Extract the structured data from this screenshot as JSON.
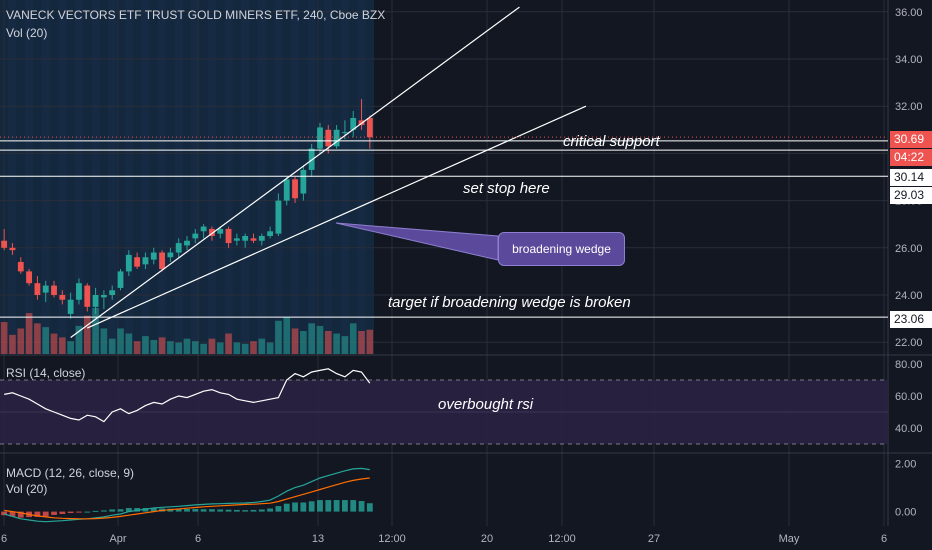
{
  "header": {
    "title": "VANECK VECTORS ETF TRUST GOLD MINERS ETF, 240, Cboe BZX",
    "vol_label": "Vol (20)"
  },
  "rsi_pane": {
    "label": "RSI (14, close)"
  },
  "macd_pane": {
    "label": "MACD (12, 26, close, 9)",
    "vol_label": "Vol (20)"
  },
  "annotations": {
    "critical_support": "critical support",
    "set_stop": "set stop here",
    "wedge_callout": "broadening wedge",
    "target": "target if broadening wedge is broken",
    "overbought": "overbought rsi"
  },
  "price_tags": {
    "last": "30.69",
    "countdown": "04:22",
    "stop": "30.14",
    "level": "29.03",
    "target": "23.06"
  },
  "colors": {
    "up": "#26a69a",
    "down": "#ef5350",
    "background": "#131722",
    "session_band": "#1c3a5e",
    "callout": "#5b4a9b",
    "rsi_band": "#2a2242",
    "macd_line": "#26a69a",
    "signal_line": "#ff6d00"
  },
  "chart_data": [
    {
      "type": "candlestick",
      "title": "VANECK VECTORS ETF TRUST GOLD MINERS ETF, 240, Cboe BZX",
      "x_tick_labels": [
        "6",
        "Apr",
        "6",
        "13",
        "12:00",
        "20",
        "12:00",
        "27",
        "May",
        "6"
      ],
      "y_tick_labels": [
        "36.00",
        "34.00",
        "32.00",
        "30.00",
        "28.00",
        "26.00",
        "24.00",
        "22.00"
      ],
      "ylim": [
        21.5,
        36.5
      ],
      "grid": true,
      "candles": [
        {
          "o": 26.3,
          "h": 26.8,
          "l": 25.9,
          "c": 26.0
        },
        {
          "o": 26.0,
          "h": 26.2,
          "l": 25.7,
          "c": 25.9
        },
        {
          "o": 25.4,
          "h": 25.6,
          "l": 24.9,
          "c": 25.0
        },
        {
          "o": 25.0,
          "h": 25.1,
          "l": 24.4,
          "c": 24.5
        },
        {
          "o": 24.5,
          "h": 24.8,
          "l": 23.8,
          "c": 24.0
        },
        {
          "o": 24.1,
          "h": 24.6,
          "l": 23.7,
          "c": 24.4
        },
        {
          "o": 24.4,
          "h": 24.6,
          "l": 23.9,
          "c": 24.0
        },
        {
          "o": 24.0,
          "h": 24.2,
          "l": 23.6,
          "c": 23.8
        },
        {
          "o": 23.2,
          "h": 24.1,
          "l": 23.0,
          "c": 23.8
        },
        {
          "o": 23.8,
          "h": 24.7,
          "l": 23.6,
          "c": 24.5
        },
        {
          "o": 24.4,
          "h": 24.5,
          "l": 23.3,
          "c": 23.5
        },
        {
          "o": 23.5,
          "h": 24.3,
          "l": 23.2,
          "c": 24.0
        },
        {
          "o": 23.9,
          "h": 24.2,
          "l": 23.4,
          "c": 24.0
        },
        {
          "o": 24.0,
          "h": 24.4,
          "l": 23.8,
          "c": 24.2
        },
        {
          "o": 24.3,
          "h": 25.1,
          "l": 24.2,
          "c": 25.0
        },
        {
          "o": 25.0,
          "h": 25.9,
          "l": 24.8,
          "c": 25.7
        },
        {
          "o": 25.6,
          "h": 25.8,
          "l": 25.1,
          "c": 25.2
        },
        {
          "o": 25.3,
          "h": 25.8,
          "l": 25.1,
          "c": 25.6
        },
        {
          "o": 25.5,
          "h": 26.0,
          "l": 25.3,
          "c": 25.8
        },
        {
          "o": 25.8,
          "h": 25.9,
          "l": 25.0,
          "c": 25.1
        },
        {
          "o": 25.6,
          "h": 26.0,
          "l": 25.4,
          "c": 25.8
        },
        {
          "o": 25.8,
          "h": 26.4,
          "l": 25.6,
          "c": 26.2
        },
        {
          "o": 26.1,
          "h": 26.5,
          "l": 25.9,
          "c": 26.3
        },
        {
          "o": 26.4,
          "h": 26.8,
          "l": 26.2,
          "c": 26.6
        },
        {
          "o": 26.7,
          "h": 27.0,
          "l": 26.4,
          "c": 26.9
        },
        {
          "o": 26.8,
          "h": 26.9,
          "l": 26.3,
          "c": 26.5
        },
        {
          "o": 26.6,
          "h": 26.9,
          "l": 26.4,
          "c": 26.8
        },
        {
          "o": 26.8,
          "h": 26.9,
          "l": 26.0,
          "c": 26.2
        },
        {
          "o": 26.3,
          "h": 26.6,
          "l": 26.1,
          "c": 26.4
        },
        {
          "o": 26.3,
          "h": 26.6,
          "l": 26.0,
          "c": 26.5
        },
        {
          "o": 26.4,
          "h": 26.6,
          "l": 26.2,
          "c": 26.3
        },
        {
          "o": 26.3,
          "h": 26.6,
          "l": 26.1,
          "c": 26.5
        },
        {
          "o": 26.5,
          "h": 26.9,
          "l": 26.4,
          "c": 26.7
        },
        {
          "o": 26.6,
          "h": 28.3,
          "l": 26.5,
          "c": 28.0
        },
        {
          "o": 28.0,
          "h": 29.0,
          "l": 27.8,
          "c": 28.9
        },
        {
          "o": 28.9,
          "h": 29.0,
          "l": 27.9,
          "c": 28.1
        },
        {
          "o": 28.3,
          "h": 29.5,
          "l": 28.0,
          "c": 29.3
        },
        {
          "o": 29.3,
          "h": 30.4,
          "l": 29.0,
          "c": 30.2
        },
        {
          "o": 30.2,
          "h": 31.3,
          "l": 30.0,
          "c": 31.1
        },
        {
          "o": 31.0,
          "h": 31.2,
          "l": 30.0,
          "c": 30.3
        },
        {
          "o": 30.3,
          "h": 31.2,
          "l": 30.2,
          "c": 31.0
        },
        {
          "o": 30.9,
          "h": 31.4,
          "l": 30.6,
          "c": 30.9
        },
        {
          "o": 31.0,
          "h": 31.8,
          "l": 30.7,
          "c": 31.5
        },
        {
          "o": 31.4,
          "h": 32.3,
          "l": 31.0,
          "c": 31.2
        },
        {
          "o": 31.5,
          "h": 31.6,
          "l": 30.2,
          "c": 30.69
        }
      ],
      "volume": [
        2.5,
        1.5,
        2.0,
        3.2,
        2.4,
        2.1,
        1.6,
        1.3,
        1.0,
        2.2,
        3.0,
        3.6,
        2.0,
        1.2,
        2.0,
        1.6,
        1.0,
        1.4,
        1.1,
        1.3,
        1.0,
        0.9,
        1.2,
        1.0,
        0.8,
        1.2,
        0.9,
        1.6,
        0.9,
        0.8,
        1.0,
        1.2,
        0.9,
        2.6,
        2.9,
        2.0,
        1.8,
        2.4,
        2.2,
        1.8,
        1.6,
        1.4,
        2.4,
        1.8,
        1.9
      ],
      "drawings": [
        {
          "kind": "trendline",
          "name": "wedge-upper",
          "from": {
            "bar": 8,
            "price": 22.2
          },
          "to": {
            "bar": 62,
            "price": 36.2
          }
        },
        {
          "kind": "trendline",
          "name": "wedge-lower",
          "from": {
            "bar": 10,
            "price": 22.6
          },
          "to": {
            "bar": 70,
            "price": 32.0
          }
        },
        {
          "kind": "horizontal",
          "name": "critical-support",
          "price": 30.69
        },
        {
          "kind": "horizontal",
          "name": "stop",
          "price": 30.14
        },
        {
          "kind": "horizontal",
          "name": "level",
          "price": 29.03
        },
        {
          "kind": "horizontal",
          "name": "target",
          "price": 23.06
        }
      ]
    },
    {
      "type": "line",
      "title": "RSI (14, close)",
      "ylim": [
        25,
        85
      ],
      "y_tick_labels": [
        "80.00",
        "60.00",
        "40.00"
      ],
      "bands": [
        30,
        70
      ],
      "values": [
        61,
        62,
        60,
        58,
        55,
        52,
        50,
        48,
        46,
        45,
        48,
        47,
        44,
        50,
        52,
        49,
        51,
        54,
        56,
        55,
        58,
        60,
        59,
        61,
        63,
        64,
        62,
        61,
        58,
        57,
        56,
        57,
        58,
        59,
        70,
        74,
        72,
        75,
        76,
        77,
        74,
        72,
        76,
        75,
        68
      ]
    },
    {
      "type": "line",
      "title": "MACD (12, 26, close, 9)",
      "ylim": [
        -0.6,
        2.4
      ],
      "y_tick_labels": [
        "2.00",
        "0.00"
      ],
      "series": [
        {
          "values": [
            -0.1,
            -0.2,
            -0.3,
            -0.35,
            -0.4,
            -0.42,
            -0.4,
            -0.38,
            -0.35,
            -0.32,
            -0.3,
            -0.26,
            -0.22,
            -0.15,
            -0.1,
            0.0,
            0.05,
            0.1,
            0.15,
            0.18,
            0.2,
            0.22,
            0.25,
            0.28,
            0.3,
            0.32,
            0.33,
            0.34,
            0.35,
            0.36,
            0.38,
            0.42,
            0.48,
            0.65,
            0.85,
            1.0,
            1.1,
            1.25,
            1.4,
            1.5,
            1.6,
            1.7,
            1.78,
            1.8,
            1.75
          ]
        },
        {
          "values": [
            0.05,
            0.0,
            -0.05,
            -0.12,
            -0.18,
            -0.22,
            -0.26,
            -0.28,
            -0.29,
            -0.3,
            -0.3,
            -0.29,
            -0.27,
            -0.24,
            -0.2,
            -0.15,
            -0.1,
            -0.05,
            0.0,
            0.05,
            0.08,
            0.11,
            0.14,
            0.17,
            0.2,
            0.22,
            0.24,
            0.26,
            0.28,
            0.3,
            0.31,
            0.33,
            0.35,
            0.42,
            0.52,
            0.62,
            0.72,
            0.82,
            0.92,
            1.02,
            1.12,
            1.22,
            1.3,
            1.36,
            1.4
          ]
        }
      ]
    }
  ]
}
